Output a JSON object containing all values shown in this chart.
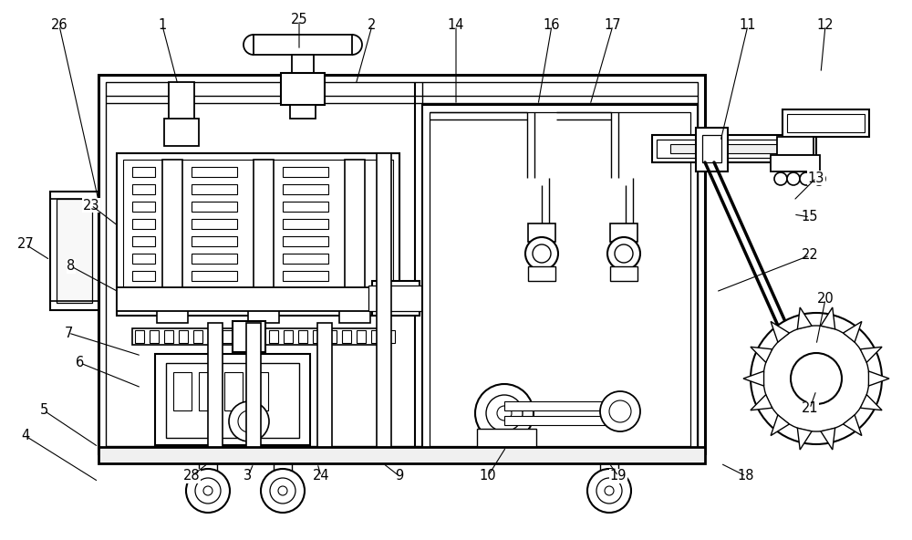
{
  "bg_color": "#ffffff",
  "line_color": "#000000",
  "lw": 1.3,
  "fig_width": 10.0,
  "fig_height": 5.92,
  "labels_info": [
    [
      "26",
      65,
      28,
      108,
      220
    ],
    [
      "1",
      178,
      28,
      195,
      93
    ],
    [
      "25",
      328,
      22,
      328,
      55
    ],
    [
      "2",
      408,
      28,
      390,
      93
    ],
    [
      "14",
      500,
      28,
      500,
      115
    ],
    [
      "16",
      605,
      28,
      590,
      115
    ],
    [
      "17",
      672,
      28,
      647,
      115
    ],
    [
      "11",
      820,
      28,
      790,
      155
    ],
    [
      "12",
      905,
      28,
      900,
      80
    ],
    [
      "13",
      895,
      195,
      870,
      220
    ],
    [
      "15",
      888,
      238,
      870,
      235
    ],
    [
      "22",
      888,
      280,
      785,
      320
    ],
    [
      "23",
      100,
      225,
      130,
      248
    ],
    [
      "8",
      78,
      292,
      130,
      320
    ],
    [
      "7",
      75,
      365,
      155,
      390
    ],
    [
      "6",
      88,
      398,
      155,
      425
    ],
    [
      "27",
      28,
      268,
      55,
      285
    ],
    [
      "5",
      48,
      450,
      108,
      490
    ],
    [
      "4",
      28,
      478,
      108,
      528
    ],
    [
      "28",
      210,
      522,
      228,
      508
    ],
    [
      "3",
      272,
      522,
      278,
      508
    ],
    [
      "24",
      352,
      522,
      348,
      508
    ],
    [
      "9",
      438,
      522,
      420,
      508
    ],
    [
      "10",
      535,
      522,
      555,
      490
    ],
    [
      "19",
      678,
      522,
      668,
      508
    ],
    [
      "18",
      818,
      522,
      790,
      508
    ],
    [
      "20",
      905,
      328,
      895,
      378
    ],
    [
      "21",
      888,
      448,
      895,
      428
    ]
  ]
}
